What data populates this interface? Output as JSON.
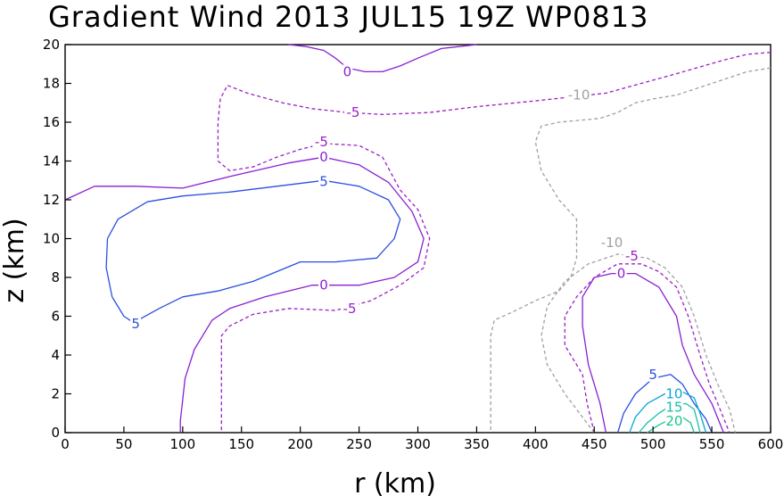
{
  "chart_data": {
    "type": "contour",
    "title": "Gradient Wind 2013 JUL15 19Z  WP0813",
    "xlabel": "r (km)",
    "ylabel": "z (km)",
    "xlim": [
      0,
      600
    ],
    "ylim": [
      0,
      20
    ],
    "x_ticks": [
      "0",
      "50",
      "100",
      "150",
      "200",
      "250",
      "300",
      "350",
      "400",
      "450",
      "500",
      "550",
      "600"
    ],
    "y_ticks": [
      "0",
      "2",
      "4",
      "6",
      "8",
      "10",
      "12",
      "14",
      "16",
      "18",
      "20"
    ],
    "grid": false,
    "levels": [
      {
        "value": -10,
        "label": "-10",
        "color": "#a0a0a0",
        "dashed": true
      },
      {
        "value": -5,
        "label": "-5",
        "color": "#9b1fc6",
        "dashed": true
      },
      {
        "value": 0,
        "label": "0",
        "color": "#8a1fd1",
        "dashed": false
      },
      {
        "value": 5,
        "label": "5",
        "color": "#2a4fe0",
        "dashed": false
      },
      {
        "value": 10,
        "label": "10",
        "color": "#0aa6d6",
        "dashed": false
      },
      {
        "value": 15,
        "label": "15",
        "color": "#12c2a6",
        "dashed": false
      },
      {
        "value": 20,
        "label": "20",
        "color": "#18c490",
        "dashed": false
      }
    ],
    "contours": [
      {
        "level": 0,
        "points": [
          [
            190,
            20
          ],
          [
            205,
            19.9
          ],
          [
            220,
            19.7
          ],
          [
            230,
            19.3
          ],
          [
            240,
            18.8
          ],
          [
            255,
            18.6
          ],
          [
            270,
            18.6
          ],
          [
            285,
            18.9
          ],
          [
            300,
            19.3
          ],
          [
            320,
            19.8
          ],
          [
            350,
            20
          ]
        ]
      },
      {
        "level": 0,
        "points": [
          [
            0,
            12.0
          ],
          [
            25,
            12.7
          ],
          [
            60,
            12.7
          ],
          [
            100,
            12.6
          ],
          [
            140,
            13.2
          ],
          [
            190,
            13.9
          ],
          [
            220,
            14.2
          ],
          [
            250,
            13.8
          ],
          [
            275,
            12.9
          ],
          [
            295,
            11.4
          ],
          [
            305,
            10.0
          ],
          [
            300,
            8.8
          ],
          [
            280,
            8.0
          ],
          [
            250,
            7.6
          ],
          [
            210,
            7.6
          ],
          [
            170,
            7.0
          ],
          [
            140,
            6.4
          ],
          [
            125,
            5.8
          ],
          [
            110,
            4.3
          ],
          [
            102,
            2.8
          ],
          [
            98,
            0.6
          ],
          [
            98,
            0
          ]
        ]
      },
      {
        "level": 0,
        "points": [
          [
            460,
            0
          ],
          [
            455,
            1.5
          ],
          [
            445,
            3.5
          ],
          [
            440,
            5.5
          ],
          [
            440,
            7.0
          ],
          [
            450,
            8.0
          ],
          [
            465,
            8.2
          ],
          [
            485,
            8.2
          ],
          [
            505,
            7.5
          ],
          [
            520,
            6.0
          ],
          [
            525,
            4.5
          ],
          [
            535,
            3.0
          ],
          [
            550,
            1.5
          ],
          [
            560,
            0
          ]
        ]
      },
      {
        "level": 5,
        "points": [
          [
            60,
            5.6
          ],
          [
            50,
            6.0
          ],
          [
            40,
            7.0
          ],
          [
            35,
            8.5
          ],
          [
            36,
            10.0
          ],
          [
            45,
            11.0
          ],
          [
            70,
            11.9
          ],
          [
            100,
            12.2
          ],
          [
            140,
            12.4
          ],
          [
            180,
            12.7
          ],
          [
            220,
            13.0
          ],
          [
            250,
            12.7
          ],
          [
            275,
            12.0
          ],
          [
            285,
            11.0
          ],
          [
            280,
            10.0
          ],
          [
            265,
            9.0
          ],
          [
            230,
            8.8
          ],
          [
            200,
            8.8
          ],
          [
            160,
            7.8
          ],
          [
            130,
            7.3
          ],
          [
            100,
            7.0
          ],
          [
            80,
            6.4
          ],
          [
            65,
            5.9
          ],
          [
            60,
            5.6
          ]
        ]
      },
      {
        "level": 5,
        "points": [
          [
            470,
            0
          ],
          [
            475,
            1.0
          ],
          [
            485,
            2.0
          ],
          [
            500,
            2.8
          ],
          [
            515,
            3.0
          ],
          [
            525,
            2.5
          ],
          [
            535,
            1.5
          ],
          [
            545,
            0.7
          ],
          [
            550,
            0
          ]
        ]
      },
      {
        "level": 10,
        "points": [
          [
            480,
            0
          ],
          [
            485,
            0.8
          ],
          [
            495,
            1.5
          ],
          [
            510,
            2.0
          ],
          [
            525,
            2.1
          ],
          [
            535,
            1.8
          ],
          [
            540,
            1.0
          ],
          [
            545,
            0
          ]
        ]
      },
      {
        "level": 15,
        "points": [
          [
            488,
            0
          ],
          [
            495,
            0.5
          ],
          [
            505,
            1.0
          ],
          [
            515,
            1.4
          ],
          [
            528,
            1.5
          ],
          [
            535,
            1.2
          ],
          [
            538,
            0.5
          ],
          [
            540,
            0
          ]
        ]
      },
      {
        "level": 20,
        "points": [
          [
            495,
            0
          ],
          [
            505,
            0.4
          ],
          [
            515,
            0.7
          ],
          [
            525,
            0.8
          ],
          [
            532,
            0.5
          ],
          [
            535,
            0
          ]
        ]
      },
      {
        "level": -5,
        "points": [
          [
            600,
            19.6
          ],
          [
            580,
            19.5
          ],
          [
            560,
            19.2
          ],
          [
            520,
            18.5
          ],
          [
            460,
            17.5
          ],
          [
            400,
            17.1
          ],
          [
            350,
            16.8
          ],
          [
            310,
            16.5
          ],
          [
            270,
            16.4
          ],
          [
            240,
            16.5
          ],
          [
            210,
            16.7
          ],
          [
            185,
            17.0
          ],
          [
            155,
            17.5
          ],
          [
            138,
            17.9
          ],
          [
            132,
            17.2
          ],
          [
            130,
            16.0
          ],
          [
            130,
            14.0
          ],
          [
            140,
            13.5
          ],
          [
            160,
            13.7
          ],
          [
            180,
            14.2
          ],
          [
            200,
            14.6
          ],
          [
            220,
            14.9
          ],
          [
            250,
            14.8
          ],
          [
            270,
            14.2
          ],
          [
            285,
            12.5
          ],
          [
            300,
            11.5
          ],
          [
            310,
            10.0
          ],
          [
            305,
            8.5
          ],
          [
            285,
            7.6
          ],
          [
            260,
            6.8
          ],
          [
            230,
            6.3
          ],
          [
            190,
            6.4
          ],
          [
            160,
            6.1
          ],
          [
            140,
            5.5
          ],
          [
            133,
            5.0
          ],
          [
            133,
            3.0
          ],
          [
            133,
            0
          ]
        ]
      },
      {
        "level": -5,
        "points": [
          [
            450,
            0
          ],
          [
            444,
            1.5
          ],
          [
            440,
            3.0
          ],
          [
            425,
            4.5
          ],
          [
            425,
            6.0
          ],
          [
            435,
            7.0
          ],
          [
            450,
            8.0
          ],
          [
            470,
            8.7
          ],
          [
            490,
            8.7
          ],
          [
            505,
            8.3
          ],
          [
            520,
            7.5
          ],
          [
            530,
            6.0
          ],
          [
            540,
            4.0
          ],
          [
            548,
            2.5
          ],
          [
            555,
            1.5
          ],
          [
            565,
            0
          ]
        ]
      },
      {
        "level": -10,
        "points": [
          [
            600,
            18.8
          ],
          [
            580,
            18.6
          ],
          [
            550,
            18.0
          ],
          [
            520,
            17.4
          ],
          [
            500,
            17.2
          ],
          [
            485,
            17.0
          ],
          [
            470,
            16.5
          ],
          [
            455,
            16.2
          ],
          [
            420,
            16.0
          ],
          [
            405,
            15.8
          ],
          [
            400,
            15.0
          ],
          [
            405,
            13.5
          ],
          [
            420,
            12.0
          ],
          [
            435,
            11.0
          ],
          [
            435,
            9.0
          ],
          [
            430,
            8.0
          ],
          [
            420,
            7.3
          ],
          [
            400,
            6.8
          ],
          [
            380,
            6.2
          ],
          [
            365,
            5.8
          ],
          [
            362,
            5.0
          ],
          [
            362,
            3.0
          ],
          [
            362,
            0
          ]
        ]
      },
      {
        "level": -10,
        "points": [
          [
            450,
            0
          ],
          [
            440,
            0.8
          ],
          [
            425,
            2.0
          ],
          [
            410,
            3.5
          ],
          [
            405,
            5.0
          ],
          [
            410,
            6.5
          ],
          [
            425,
            7.8
          ],
          [
            445,
            8.7
          ],
          [
            470,
            9.2
          ],
          [
            495,
            9.0
          ],
          [
            510,
            8.5
          ],
          [
            525,
            7.5
          ],
          [
            535,
            6.0
          ],
          [
            545,
            4.0
          ],
          [
            555,
            2.5
          ],
          [
            565,
            1.2
          ],
          [
            570,
            0
          ]
        ]
      }
    ],
    "contour_labels": [
      {
        "text": "0",
        "x": 240,
        "y": 18.6,
        "level": 0
      },
      {
        "text": "0",
        "x": 220,
        "y": 14.2,
        "level": 0
      },
      {
        "text": "0",
        "x": 220,
        "y": 7.6,
        "level": 0
      },
      {
        "text": "0",
        "x": 473,
        "y": 8.2,
        "level": 0
      },
      {
        "text": "5",
        "x": 220,
        "y": 12.95,
        "level": 5
      },
      {
        "text": "5",
        "x": 60,
        "y": 5.6,
        "level": 5
      },
      {
        "text": "5",
        "x": 500,
        "y": 3.0,
        "level": 5
      },
      {
        "text": "10",
        "x": 518,
        "y": 2.0,
        "level": 10
      },
      {
        "text": "15",
        "x": 518,
        "y": 1.3,
        "level": 15
      },
      {
        "text": "20",
        "x": 518,
        "y": 0.6,
        "level": 20
      },
      {
        "text": "-5",
        "x": 245,
        "y": 16.5,
        "level": -5
      },
      {
        "text": "-5",
        "x": 218,
        "y": 15.0,
        "level": -5
      },
      {
        "text": "-5",
        "x": 242,
        "y": 6.4,
        "level": -5
      },
      {
        "text": "-5",
        "x": 482,
        "y": 9.1,
        "level": -5
      },
      {
        "text": "-10",
        "x": 437,
        "y": 17.4,
        "level": -10
      },
      {
        "text": "-10",
        "x": 465,
        "y": 9.8,
        "level": -10
      }
    ]
  }
}
